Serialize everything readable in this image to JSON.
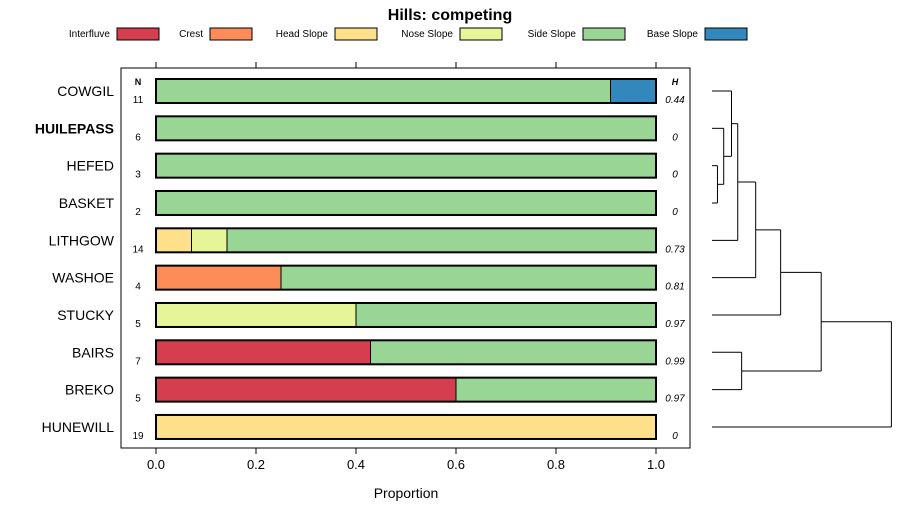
{
  "chart_data": {
    "type": "bar",
    "orientation": "horizontal",
    "stacked": true,
    "title": "Hills: competing",
    "xlabel": "Proportion",
    "ylabel": "",
    "xlim": [
      0,
      1
    ],
    "x_ticks": [
      "0.0",
      "0.2",
      "0.4",
      "0.6",
      "0.8",
      "1.0"
    ],
    "n_header": "N",
    "h_header": "H",
    "legend": [
      {
        "name": "Interfluve",
        "color": "#d53e4f"
      },
      {
        "name": "Crest",
        "color": "#fc8d59"
      },
      {
        "name": "Head Slope",
        "color": "#fee08b"
      },
      {
        "name": "Nose Slope",
        "color": "#e6f598"
      },
      {
        "name": "Side Slope",
        "color": "#99d594"
      },
      {
        "name": "Base Slope",
        "color": "#3288bd"
      }
    ],
    "rows": [
      {
        "label": "COWGIL",
        "bold": false,
        "n": "11",
        "h": "0.44",
        "values": [
          0,
          0,
          0,
          0,
          0.909,
          0.091
        ]
      },
      {
        "label": "HUILEPASS",
        "bold": true,
        "n": "6",
        "h": "0",
        "values": [
          0,
          0,
          0,
          0,
          1.0,
          0
        ]
      },
      {
        "label": "HEFED",
        "bold": false,
        "n": "3",
        "h": "0",
        "values": [
          0,
          0,
          0,
          0,
          1.0,
          0
        ]
      },
      {
        "label": "BASKET",
        "bold": false,
        "n": "2",
        "h": "0",
        "values": [
          0,
          0,
          0,
          0,
          1.0,
          0
        ]
      },
      {
        "label": "LITHGOW",
        "bold": false,
        "n": "14",
        "h": "0.73",
        "values": [
          0,
          0,
          0.071,
          0.071,
          0.858,
          0
        ]
      },
      {
        "label": "WASHOE",
        "bold": false,
        "n": "4",
        "h": "0.81",
        "values": [
          0,
          0.25,
          0,
          0,
          0.75,
          0
        ]
      },
      {
        "label": "STUCKY",
        "bold": false,
        "n": "5",
        "h": "0.97",
        "values": [
          0,
          0,
          0,
          0.4,
          0.6,
          0
        ]
      },
      {
        "label": "BAIRS",
        "bold": false,
        "n": "7",
        "h": "0.99",
        "values": [
          0.429,
          0,
          0,
          0,
          0.571,
          0
        ]
      },
      {
        "label": "BREKO",
        "bold": false,
        "n": "5",
        "h": "0.97",
        "values": [
          0.6,
          0,
          0,
          0,
          0.4,
          0
        ]
      },
      {
        "label": "HUNEWILL",
        "bold": false,
        "n": "19",
        "h": "0",
        "values": [
          0,
          0,
          1.0,
          0,
          0,
          0
        ]
      }
    ],
    "dendrogram": {
      "description": "hierarchical clustering of rows (leaf order top to bottom)",
      "merges": [
        {
          "a": "HEFED",
          "b": "BASKET",
          "height": 0.07
        },
        {
          "a": "HUILEPASS",
          "b": "HEFED+BASKET",
          "height": 0.15
        },
        {
          "a": "COWGIL",
          "b": "HUILEPASS+HEFED+BASKET",
          "height": 0.25
        },
        {
          "a": "COWGIL..BASKET",
          "b": "LITHGOW",
          "height": 0.33
        },
        {
          "a": "COWGIL..LITHGOW",
          "b": "WASHOE",
          "height": 0.56
        },
        {
          "a": "COWGIL..WASHOE",
          "b": "STUCKY",
          "height": 0.88
        },
        {
          "a": "BAIRS",
          "b": "BREKO",
          "height": 0.38
        },
        {
          "a": "COWGIL..STUCKY",
          "b": "BAIRS+BREKO",
          "height": 1.4
        },
        {
          "a": "COWGIL..BREKO",
          "b": "HUNEWILL",
          "height": 2.3
        }
      ]
    }
  }
}
